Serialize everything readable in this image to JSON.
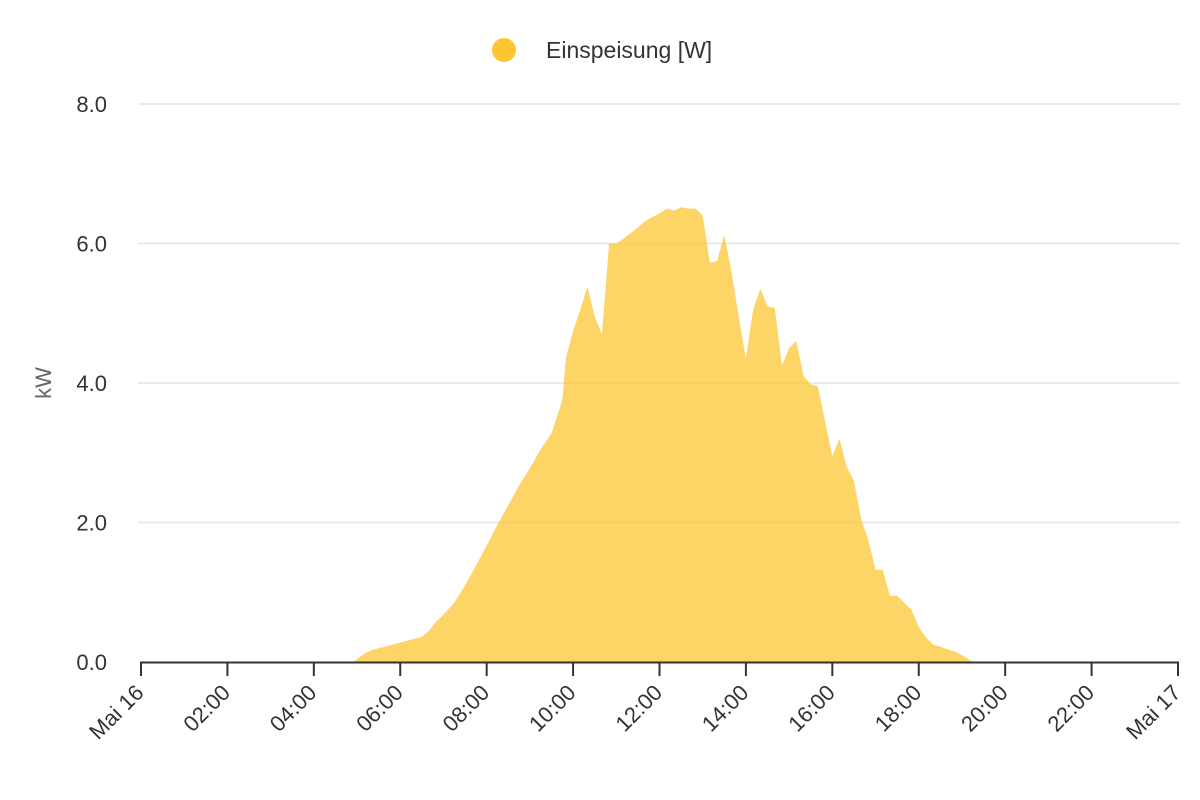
{
  "chart_data": {
    "type": "area",
    "xlabel": "",
    "ylabel": "kW",
    "xlim": [
      "05-16 00:00",
      "05-17 00:00"
    ],
    "ylim": [
      0,
      8
    ],
    "y_ticks": [
      "0.0",
      "2.0",
      "4.0",
      "6.0",
      "8.0"
    ],
    "x_ticks": [
      "Mai 16",
      "02:00",
      "04:00",
      "06:00",
      "08:00",
      "10:00",
      "12:00",
      "14:00",
      "16:00",
      "18:00",
      "20:00",
      "22:00",
      "Mai 17"
    ],
    "grid": true,
    "legend": {
      "position": "top-center",
      "entries": [
        "Einspeisung [W]"
      ]
    },
    "series": [
      {
        "name": "Einspeisung [W]",
        "color": "#fcc633",
        "x": [
          "04:55",
          "05:10",
          "05:20",
          "06:00",
          "06:30",
          "06:40",
          "06:50",
          "07:00",
          "07:15",
          "07:30",
          "07:45",
          "08:00",
          "08:15",
          "08:30",
          "08:45",
          "09:00",
          "09:15",
          "09:30",
          "09:45",
          "09:50",
          "10:00",
          "10:10",
          "10:20",
          "10:30",
          "10:40",
          "10:50",
          "11:00",
          "11:10",
          "11:20",
          "11:30",
          "11:40",
          "11:50",
          "12:00",
          "12:10",
          "12:20",
          "12:30",
          "12:40",
          "12:50",
          "13:00",
          "13:10",
          "13:20",
          "13:30",
          "13:40",
          "13:50",
          "14:00",
          "14:10",
          "14:20",
          "14:30",
          "14:40",
          "14:50",
          "15:00",
          "15:10",
          "15:20",
          "15:30",
          "15:40",
          "15:50",
          "16:00",
          "16:10",
          "16:20",
          "16:30",
          "16:40",
          "16:50",
          "17:00",
          "17:10",
          "17:20",
          "17:30",
          "17:40",
          "17:50",
          "18:00",
          "18:10",
          "18:20",
          "18:30",
          "18:40",
          "18:50",
          "19:00",
          "19:15",
          "19:25"
        ],
        "values": [
          0.0,
          0.12,
          0.17,
          0.28,
          0.36,
          0.45,
          0.58,
          0.68,
          0.85,
          1.1,
          1.38,
          1.67,
          1.97,
          2.25,
          2.53,
          2.78,
          3.05,
          3.28,
          3.75,
          4.35,
          4.75,
          5.05,
          5.38,
          4.95,
          4.7,
          6.0,
          6.0,
          6.07,
          6.15,
          6.23,
          6.32,
          6.38,
          6.43,
          6.5,
          6.47,
          6.52,
          6.5,
          6.5,
          6.4,
          5.72,
          5.75,
          6.12,
          5.6,
          4.95,
          4.35,
          5.05,
          5.35,
          5.1,
          5.08,
          4.25,
          4.5,
          4.6,
          4.1,
          3.98,
          3.95,
          3.45,
          2.95,
          3.2,
          2.8,
          2.6,
          2.05,
          1.75,
          1.32,
          1.32,
          0.95,
          0.95,
          0.85,
          0.75,
          0.5,
          0.35,
          0.25,
          0.22,
          0.18,
          0.15,
          0.1,
          0.0,
          0.0
        ]
      }
    ]
  }
}
